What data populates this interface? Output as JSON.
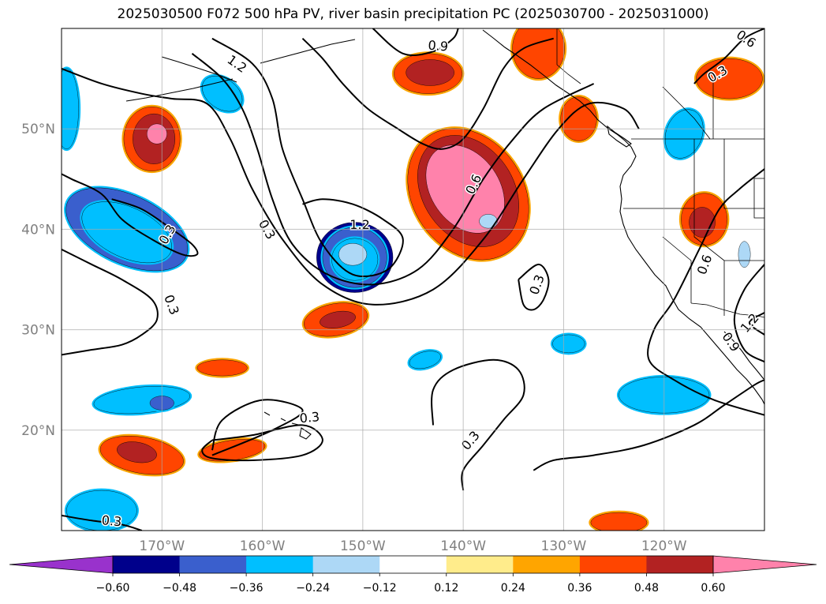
{
  "title": "2025030500 F072 500 hPa PV, river basin precipitation PC (2025030700 - 2025031000)",
  "chart_data": {
    "type": "heatmap",
    "title": "2025030500 F072 500 hPa PV, river basin precipitation PC (2025030700 - 2025031000)",
    "projection": "cylindrical lat-lon",
    "xlim": [
      -180,
      -110
    ],
    "ylim": [
      10,
      60
    ],
    "gridlines": true,
    "x_ticks": [
      {
        "value": -170,
        "label": "170°W"
      },
      {
        "value": -160,
        "label": "160°W"
      },
      {
        "value": -150,
        "label": "150°W"
      },
      {
        "value": -140,
        "label": "140°W"
      },
      {
        "value": -130,
        "label": "130°W"
      },
      {
        "value": -120,
        "label": "120°W"
      }
    ],
    "y_ticks": [
      {
        "value": 20,
        "label": "20°N"
      },
      {
        "value": 30,
        "label": "30°N"
      },
      {
        "value": 40,
        "label": "40°N"
      },
      {
        "value": 50,
        "label": "50°N"
      }
    ],
    "colorbar": {
      "extend": "both",
      "bounds": [
        -0.6,
        -0.48,
        -0.36,
        -0.24,
        -0.12,
        0.12,
        0.24,
        0.36,
        0.48,
        0.6
      ],
      "tick_labels": [
        "−0.60",
        "−0.48",
        "−0.36",
        "−0.24",
        "−0.12",
        "0.12",
        "0.24",
        "0.36",
        "0.48",
        "0.60"
      ],
      "colors": [
        "#9932cc",
        "#00008b",
        "#3a5fcd",
        "#00bfff",
        "#add8f6",
        "#ffffff",
        "#ffec8b",
        "#ffa500",
        "#ff4500",
        "#b22222",
        "#ff82ab"
      ]
    },
    "shaded_regions": [
      {
        "lon": -139.5,
        "lat": 43.5,
        "rx": 5.5,
        "ry": 7,
        "rot": -35,
        "level": 3
      },
      {
        "lon": -139.5,
        "lat": 43.8,
        "rx": 4.5,
        "ry": 6,
        "rot": -35,
        "level": 4
      },
      {
        "lon": -139.8,
        "lat": 44,
        "rx": 3.4,
        "ry": 4.8,
        "rot": -35,
        "level": 5
      },
      {
        "lon": -150.8,
        "lat": 37.2,
        "rx": 3.8,
        "ry": 3.5,
        "rot": 0,
        "level": -4
      },
      {
        "lon": -150.8,
        "lat": 37.2,
        "rx": 3.2,
        "ry": 3,
        "rot": 0,
        "level": -3
      },
      {
        "lon": -150.8,
        "lat": 37.0,
        "rx": 2.3,
        "ry": 2.1,
        "rot": 0,
        "level": -2
      },
      {
        "lon": -151.0,
        "lat": 37.5,
        "rx": 1.4,
        "ry": 1.1,
        "rot": 0,
        "level": -1
      },
      {
        "lon": -173.5,
        "lat": 40,
        "rx": 6.5,
        "ry": 3.4,
        "rot": 25,
        "level": -3
      },
      {
        "lon": -173.5,
        "lat": 39.7,
        "rx": 4.8,
        "ry": 2.5,
        "rot": 25,
        "level": -2
      },
      {
        "lon": -171,
        "lat": 49,
        "rx": 2.8,
        "ry": 3.2,
        "rot": 0,
        "level": 3
      },
      {
        "lon": -170.8,
        "lat": 49,
        "rx": 2.1,
        "ry": 2.5,
        "rot": 0,
        "level": 4
      },
      {
        "lon": -170.5,
        "lat": 49.5,
        "rx": 1.0,
        "ry": 1.0,
        "rot": 0,
        "level": 5
      },
      {
        "lon": -143.5,
        "lat": 55.5,
        "rx": 3.4,
        "ry": 2.0,
        "rot": 0,
        "level": 3
      },
      {
        "lon": -143.3,
        "lat": 55.6,
        "rx": 2.4,
        "ry": 1.3,
        "rot": 0,
        "level": 4
      },
      {
        "lon": -132.5,
        "lat": 58.0,
        "rx": 2.6,
        "ry": 3.0,
        "rot": 0,
        "level": 3
      },
      {
        "lon": -128.5,
        "lat": 51.0,
        "rx": 1.8,
        "ry": 2.2,
        "rot": 0,
        "level": 3
      },
      {
        "lon": -113.5,
        "lat": 55.0,
        "rx": 3.3,
        "ry": 2.0,
        "rot": 0,
        "level": 3
      },
      {
        "lon": -116.0,
        "lat": 41.0,
        "rx": 2.3,
        "ry": 2.6,
        "rot": 0,
        "level": 3
      },
      {
        "lon": -116.2,
        "lat": 40.7,
        "rx": 1.3,
        "ry": 1.5,
        "rot": 0,
        "level": 4
      },
      {
        "lon": -152.7,
        "lat": 31.0,
        "rx": 3.2,
        "ry": 1.6,
        "rot": -10,
        "level": 3
      },
      {
        "lon": -152.5,
        "lat": 31.0,
        "rx": 1.8,
        "ry": 0.8,
        "rot": -10,
        "level": 4
      },
      {
        "lon": -172.0,
        "lat": 17.5,
        "rx": 4.2,
        "ry": 1.8,
        "rot": 10,
        "level": 3
      },
      {
        "lon": -172.5,
        "lat": 17.8,
        "rx": 2.0,
        "ry": 1.0,
        "rot": 10,
        "level": 4
      },
      {
        "lon": -163.0,
        "lat": 18.0,
        "rx": 3.3,
        "ry": 1.0,
        "rot": -8,
        "level": 3
      },
      {
        "lon": -164.0,
        "lat": 26.2,
        "rx": 2.5,
        "ry": 0.8,
        "rot": 0,
        "level": 3
      },
      {
        "lon": -124.5,
        "lat": 10.8,
        "rx": 2.8,
        "ry": 1.0,
        "rot": 0,
        "level": 3
      },
      {
        "lon": -172.0,
        "lat": 23.0,
        "rx": 4.8,
        "ry": 1.3,
        "rot": -5,
        "level": -2
      },
      {
        "lon": -170.0,
        "lat": 22.7,
        "rx": 1.2,
        "ry": 0.7,
        "rot": 0,
        "level": -3
      },
      {
        "lon": -120.0,
        "lat": 23.5,
        "rx": 4.5,
        "ry": 1.8,
        "rot": 0,
        "level": -2
      },
      {
        "lon": -129.5,
        "lat": 28.6,
        "rx": 1.6,
        "ry": 0.9,
        "rot": 0,
        "level": -2
      },
      {
        "lon": -143.8,
        "lat": 27.0,
        "rx": 1.6,
        "ry": 0.8,
        "rot": -15,
        "level": -2
      },
      {
        "lon": -164.0,
        "lat": 53.5,
        "rx": 2.2,
        "ry": 1.5,
        "rot": 35,
        "level": -2
      },
      {
        "lon": -118.0,
        "lat": 49.5,
        "rx": 1.8,
        "ry": 2.5,
        "rot": 20,
        "level": -2
      },
      {
        "lon": -176.0,
        "lat": 12.0,
        "rx": 3.5,
        "ry": 2.0,
        "rot": 0,
        "level": -2
      },
      {
        "lon": -179.5,
        "lat": 52.0,
        "rx": 1.2,
        "ry": 4.0,
        "rot": 0,
        "level": -2
      },
      {
        "lon": -137.5,
        "lat": 40.8,
        "rx": 0.9,
        "ry": 0.7,
        "rot": 0,
        "level": -1
      },
      {
        "lon": -112.0,
        "lat": 37.5,
        "rx": 0.6,
        "ry": 1.3,
        "rot": 0,
        "level": -1
      }
    ],
    "contours": [
      {
        "level": "0.3",
        "points": [
          [
            -180,
            27.5
          ],
          [
            -177,
            28
          ],
          [
            -174,
            28.5
          ],
          [
            -172,
            29.5
          ],
          [
            -170.5,
            31
          ],
          [
            -171,
            33
          ],
          [
            -174,
            35
          ],
          [
            -177,
            36.5
          ],
          [
            -180,
            38
          ]
        ]
      },
      {
        "level": "0.3",
        "points": [
          [
            -175,
            43
          ],
          [
            -172,
            42
          ],
          [
            -169,
            40
          ],
          [
            -167,
            38.5
          ],
          [
            -166.5,
            37.5
          ],
          [
            -168,
            37.5
          ],
          [
            -171,
            39
          ],
          [
            -174,
            41
          ],
          [
            -176,
            43.5
          ],
          [
            -179,
            45
          ],
          [
            -180,
            45.5
          ]
        ]
      },
      {
        "level": "0.3",
        "points": [
          [
            -180,
            56
          ],
          [
            -176,
            54.5
          ],
          [
            -172,
            53.5
          ],
          [
            -169,
            53
          ],
          [
            -165.5,
            52.5
          ],
          [
            -163.2,
            49
          ],
          [
            -161,
            44
          ],
          [
            -158,
            39
          ],
          [
            -154,
            34.5
          ],
          [
            -149,
            32.5
          ],
          [
            -143,
            34
          ],
          [
            -138,
            39
          ],
          [
            -134,
            45
          ],
          [
            -130.5,
            50
          ],
          [
            -127.5,
            52.5
          ],
          [
            -124,
            52
          ],
          [
            -122.5,
            50
          ]
        ]
      },
      {
        "level": "0.6",
        "points": [
          [
            -167,
            57.5
          ],
          [
            -164,
            55
          ],
          [
            -162,
            52
          ],
          [
            -160.5,
            48
          ],
          [
            -159,
            43
          ],
          [
            -157,
            38.5
          ],
          [
            -153.5,
            35.5
          ],
          [
            -149,
            34.5
          ],
          [
            -144.5,
            36
          ],
          [
            -141,
            40
          ],
          [
            -138,
            45
          ],
          [
            -135,
            49
          ],
          [
            -132,
            52
          ],
          [
            -127,
            54.5
          ]
        ]
      },
      {
        "level": "1.2",
        "points": [
          [
            -165,
            59
          ],
          [
            -161,
            56.5
          ],
          [
            -159,
            53
          ],
          [
            -158,
            48
          ],
          [
            -156,
            43
          ],
          [
            -154,
            38.5
          ],
          [
            -151,
            35.5
          ],
          [
            -147.5,
            36
          ],
          [
            -146,
            39
          ],
          [
            -148,
            41
          ],
          [
            -151,
            42.5
          ],
          [
            -154,
            43
          ],
          [
            -156,
            42.5
          ]
        ]
      },
      {
        "level": "0.9",
        "points": [
          [
            -156,
            59
          ],
          [
            -154,
            57
          ],
          [
            -152,
            54.5
          ],
          [
            -149.5,
            52
          ],
          [
            -146.5,
            50
          ],
          [
            -144,
            48.5
          ],
          [
            -142,
            48
          ],
          [
            -140,
            49
          ],
          [
            -138,
            52
          ],
          [
            -136,
            56
          ],
          [
            -134,
            58
          ],
          [
            -131,
            59
          ]
        ]
      },
      {
        "level": "0.9",
        "points": [
          [
            -149,
            60
          ],
          [
            -146,
            57.5
          ],
          [
            -143,
            57.7
          ],
          [
            -141,
            59
          ],
          [
            -140.5,
            60
          ]
        ]
      },
      {
        "level": "0.3",
        "points": [
          [
            -134.5,
            35
          ],
          [
            -132.5,
            36.5
          ],
          [
            -131.5,
            35
          ],
          [
            -132,
            33
          ],
          [
            -133,
            32
          ],
          [
            -134,
            32.5
          ],
          [
            -134.5,
            35
          ]
        ]
      },
      {
        "level": "0.3",
        "points": [
          [
            -165,
            19
          ],
          [
            -161,
            19.5
          ],
          [
            -156,
            20.5
          ],
          [
            -154,
            19
          ],
          [
            -156,
            17.5
          ],
          [
            -161,
            17
          ],
          [
            -165,
            17.2
          ],
          [
            -166,
            18
          ],
          [
            -165,
            19
          ]
        ]
      },
      {
        "level": "0.3",
        "points": [
          [
            -165,
            17.5
          ],
          [
            -159,
            20
          ],
          [
            -156,
            22
          ],
          [
            -160,
            23
          ],
          [
            -164,
            21
          ],
          [
            -165,
            18
          ]
        ]
      },
      {
        "level": "0.3",
        "points": [
          [
            -143,
            20.5
          ],
          [
            -143,
            24
          ],
          [
            -141,
            26
          ],
          [
            -137,
            27
          ],
          [
            -134.5,
            26
          ],
          [
            -134,
            23.5
          ],
          [
            -136,
            21
          ],
          [
            -138,
            18.5
          ],
          [
            -140,
            16
          ],
          [
            -140,
            14
          ]
        ]
      },
      {
        "level": "0.3",
        "points": [
          [
            -133,
            16
          ],
          [
            -131,
            17
          ],
          [
            -127,
            17.5
          ],
          [
            -122,
            18.5
          ],
          [
            -117,
            20.5
          ],
          [
            -114,
            22.5
          ],
          [
            -111,
            24.5
          ],
          [
            -110,
            25
          ]
        ]
      },
      {
        "level": "0.3",
        "points": [
          [
            -180,
            11.5
          ],
          [
            -177,
            11
          ],
          [
            -174,
            10.6
          ],
          [
            -172,
            10
          ]
        ]
      },
      {
        "level": "0.6",
        "points": [
          [
            -110,
            60
          ],
          [
            -112,
            59
          ],
          [
            -114,
            57
          ],
          [
            -116,
            55.5
          ],
          [
            -117,
            54.5
          ]
        ]
      },
      {
        "level": "0.6",
        "points": [
          [
            -110,
            46
          ],
          [
            -112.5,
            44
          ],
          [
            -114.5,
            42
          ],
          [
            -116.5,
            38
          ],
          [
            -119,
            33
          ],
          [
            -121,
            30
          ],
          [
            -121.5,
            27
          ],
          [
            -119,
            25
          ],
          [
            -115,
            23
          ],
          [
            -110,
            21.5
          ]
        ]
      },
      {
        "level": "0.9",
        "points": [
          [
            -110,
            36.5
          ],
          [
            -112,
            34
          ],
          [
            -113,
            31
          ],
          [
            -112,
            28
          ],
          [
            -110,
            26.8
          ]
        ]
      },
      {
        "level": "1.2",
        "points": [
          [
            -110,
            29.5
          ],
          [
            -111.5,
            30.7
          ],
          [
            -110,
            31.7
          ]
        ]
      }
    ],
    "contour_labels": [
      {
        "text": "1.2",
        "lon": -162.5,
        "lat": 56.5,
        "rot": 35
      },
      {
        "text": "0.9",
        "lon": -142.5,
        "lat": 58.3,
        "rot": 5
      },
      {
        "text": "0.3",
        "lon": -169.5,
        "lat": 39.5,
        "rot": -60
      },
      {
        "text": "0.3",
        "lon": -159.5,
        "lat": 40,
        "rot": 60
      },
      {
        "text": "1.2",
        "lon": -150.3,
        "lat": 40.5,
        "rot": 0
      },
      {
        "text": "0.6",
        "lon": -139,
        "lat": 44.5,
        "rot": -65
      },
      {
        "text": "0.3",
        "lon": -169,
        "lat": 32.5,
        "rot": 70
      },
      {
        "text": "0.3",
        "lon": -132.7,
        "lat": 34.5,
        "rot": -70
      },
      {
        "text": "0.6",
        "lon": -116,
        "lat": 36.5,
        "rot": -70
      },
      {
        "text": "0.3",
        "lon": -114.7,
        "lat": 55.5,
        "rot": -30
      },
      {
        "text": "0.6",
        "lon": -111.8,
        "lat": 59,
        "rot": 35
      },
      {
        "text": "0.9",
        "lon": -113.3,
        "lat": 28.8,
        "rot": 55
      },
      {
        "text": "1.2",
        "lon": -111.5,
        "lat": 30.7,
        "rot": -50
      },
      {
        "text": "0.3",
        "lon": -155.3,
        "lat": 21.3,
        "rot": -5
      },
      {
        "text": "0.3",
        "lon": -139.3,
        "lat": 19,
        "rot": -50
      },
      {
        "text": "0.3",
        "lon": -175.0,
        "lat": 11.0,
        "rot": 5
      }
    ]
  }
}
